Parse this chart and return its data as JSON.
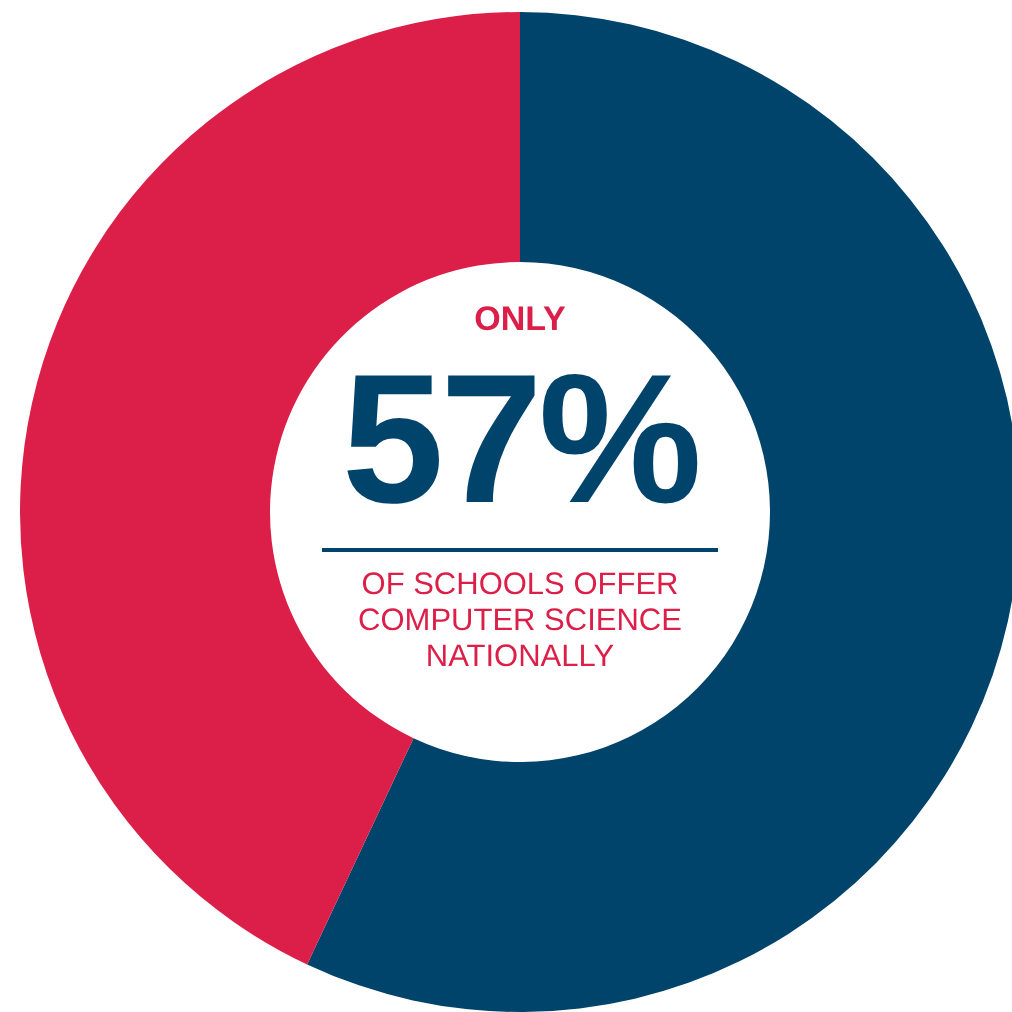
{
  "chart_data": {
    "type": "donut",
    "categories": [
      null,
      null
    ],
    "values": [
      57,
      43
    ],
    "colors": [
      "#00446b",
      "#dc1f48"
    ],
    "annotations": [
      "ONLY",
      "57%",
      "OF SCHOOLS OFFER COMPUTER SCIENCE NATIONALLY"
    ],
    "legend": false
  }
}
